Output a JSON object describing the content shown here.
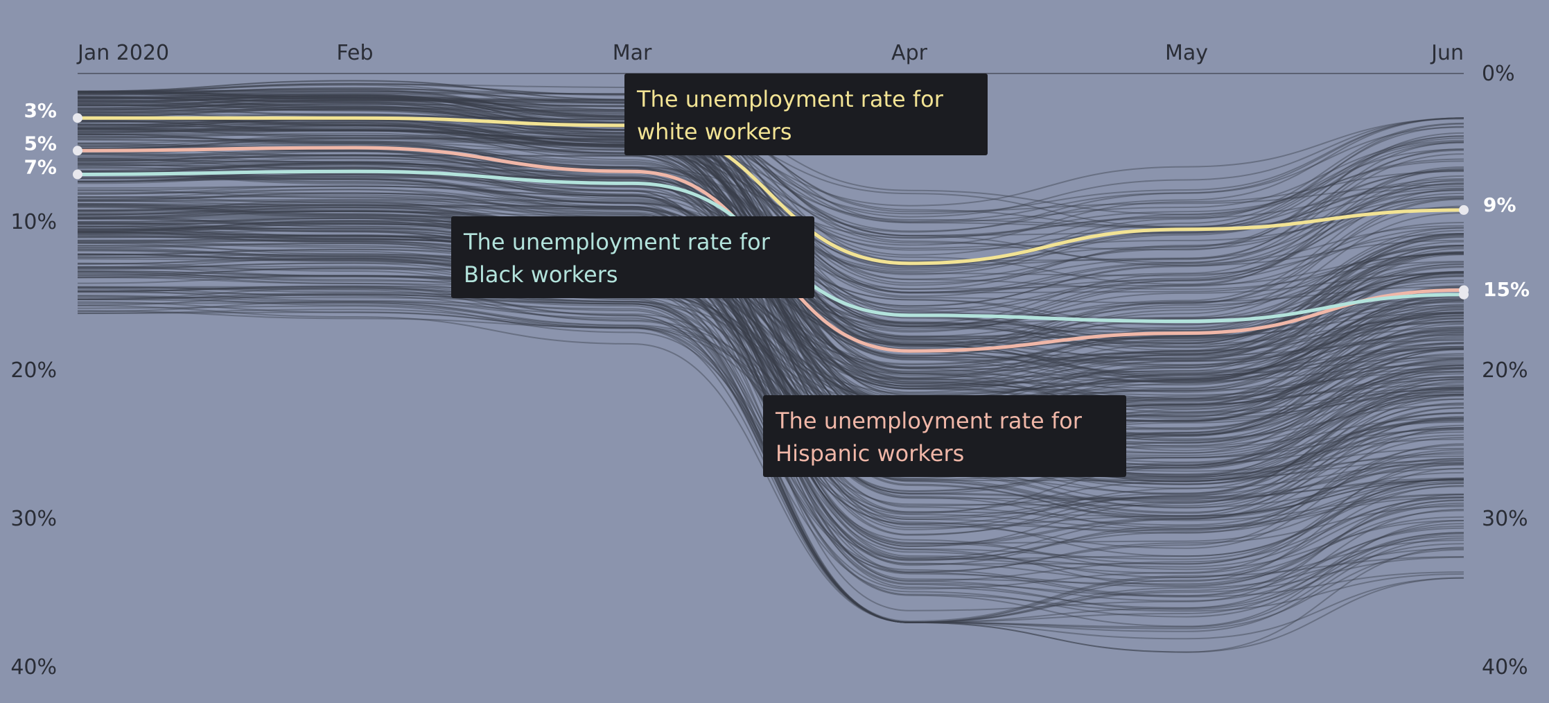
{
  "chart_data": {
    "type": "line",
    "title": "",
    "xlabel": "",
    "ylabel": "",
    "x_tick_labels": [
      "Jan 2020",
      "Feb",
      "Mar",
      "Apr",
      "May",
      "Jun"
    ],
    "y_tick_labels_left": [
      "10%",
      "20%",
      "30%",
      "40%"
    ],
    "y_tick_labels_right": [
      "0%",
      "20%",
      "30%",
      "40%"
    ],
    "ylim": [
      0,
      40
    ],
    "y_inverted": true,
    "grid": false,
    "series": [
      {
        "name": "white workers",
        "color": "#f2e394",
        "values": [
          3.0,
          3.0,
          3.5,
          12.8,
          10.5,
          9.2
        ],
        "start_label": "3%",
        "end_label": "9%"
      },
      {
        "name": "Black workers",
        "color": "#b3e3dc",
        "values": [
          6.8,
          6.6,
          7.4,
          16.3,
          16.7,
          14.9
        ],
        "start_label": "7%",
        "end_label": "15%"
      },
      {
        "name": "Hispanic workers",
        "color": "#f0b7a8",
        "values": [
          5.2,
          5.0,
          6.6,
          18.7,
          17.5,
          14.6
        ],
        "start_label": "5%",
        "end_label": ""
      }
    ],
    "background_series_count": 320,
    "callouts": [
      {
        "series": "white workers",
        "line1": "The unemployment rate for",
        "line2": "white workers"
      },
      {
        "series": "Black workers",
        "line1": "The unemployment rate for",
        "line2": "Black workers"
      },
      {
        "series": "Hispanic workers",
        "line1": "The unemployment rate for",
        "line2": "Hispanic workers"
      }
    ]
  }
}
